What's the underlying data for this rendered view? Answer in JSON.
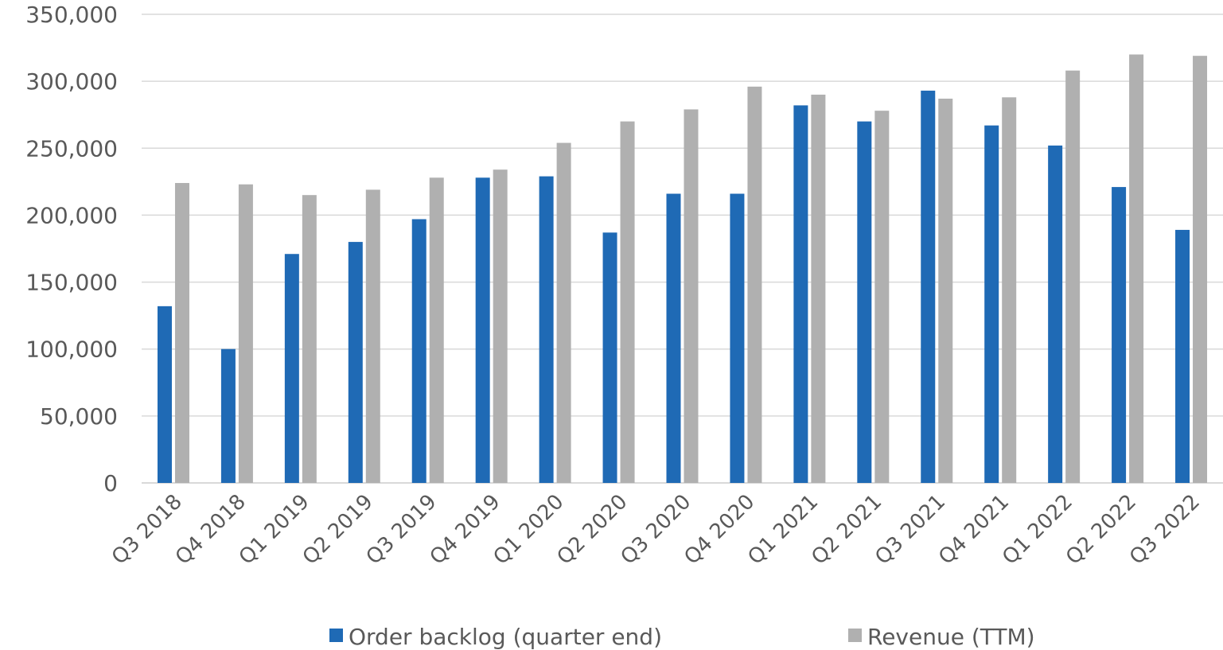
{
  "chart_data": {
    "type": "bar",
    "categories": [
      "Q3 2018",
      "Q4 2018",
      "Q1 2019",
      "Q2 2019",
      "Q3 2019",
      "Q4 2019",
      "Q1 2020",
      "Q2 2020",
      "Q3 2020",
      "Q4 2020",
      "Q1 2021",
      "Q2 2021",
      "Q3 2021",
      "Q4 2021",
      "Q1 2022",
      "Q2 2022",
      "Q3 2022"
    ],
    "series": [
      {
        "name": "Order backlog (quarter end)",
        "color": "#1f6ab5",
        "values": [
          132000,
          100000,
          171000,
          180000,
          197000,
          228000,
          229000,
          187000,
          216000,
          216000,
          282000,
          270000,
          293000,
          267000,
          252000,
          221000,
          189000
        ]
      },
      {
        "name": "Revenue (TTM)",
        "color": "#b0b0b0",
        "values": [
          224000,
          223000,
          215000,
          219000,
          228000,
          234000,
          254000,
          270000,
          279000,
          296000,
          290000,
          278000,
          287000,
          288000,
          308000,
          320000,
          319000
        ]
      }
    ],
    "ylim": [
      0,
      350000
    ],
    "yticks": [
      0,
      50000,
      100000,
      150000,
      200000,
      250000,
      300000,
      350000
    ],
    "ytick_labels": [
      "0",
      "50,000",
      "100,000",
      "150,000",
      "200,000",
      "250,000",
      "300,000",
      "350,000"
    ],
    "grid": true,
    "legend_position": "bottom"
  }
}
